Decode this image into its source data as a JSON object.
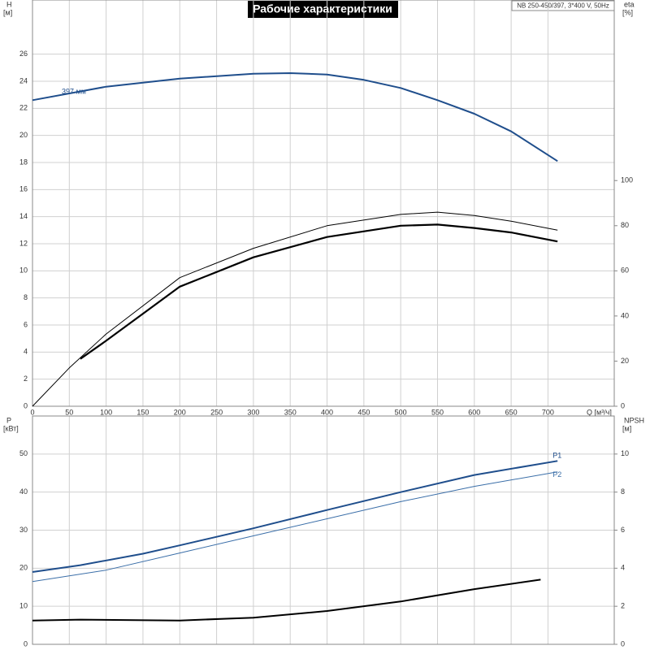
{
  "chart_data": [
    {
      "type": "line",
      "title": "Рабочие характеристики",
      "subtitle": "NB 250-450/397, 3*400 V, 50Hz",
      "ylabel": "H",
      "yunit": "[м]",
      "y2label": "eta",
      "y2unit": "[%]",
      "xlabel": "Q [м³/ч]",
      "xlim": [
        0,
        790
      ],
      "xticks": [
        0,
        50,
        100,
        150,
        200,
        250,
        300,
        350,
        400,
        450,
        500,
        550,
        600,
        650,
        700
      ],
      "ylim": [
        0,
        30
      ],
      "yticks": [
        0,
        2,
        4,
        6,
        8,
        10,
        12,
        14,
        16,
        18,
        20,
        22,
        24,
        26
      ],
      "y2lim": [
        0,
        180
      ],
      "y2ticks": [
        0,
        20,
        40,
        60,
        80,
        100
      ],
      "grid": true,
      "series": [
        {
          "name": "397 мм",
          "color": "#1f4e8c",
          "line_width": 2,
          "x": [
            0,
            100,
            200,
            300,
            350,
            400,
            450,
            500,
            550,
            600,
            650,
            713
          ],
          "values": [
            22.6,
            23.6,
            24.2,
            24.55,
            24.6,
            24.5,
            24.1,
            23.5,
            22.6,
            21.6,
            20.3,
            18.1
          ]
        },
        {
          "color": "#000000",
          "line_width": 1,
          "axis": "y2",
          "x": [
            0,
            50,
            100,
            200,
            300,
            400,
            500,
            550,
            600,
            650,
            713
          ],
          "values": [
            0,
            17,
            32,
            57,
            70,
            80,
            85,
            86,
            84.5,
            82,
            78
          ]
        },
        {
          "color": "#000000",
          "line_width": 2.2,
          "axis": "y2",
          "x": [
            65,
            100,
            200,
            300,
            400,
            500,
            550,
            600,
            650,
            713
          ],
          "values": [
            21,
            29,
            53,
            66,
            75,
            80,
            80.5,
            79,
            77,
            73
          ]
        }
      ]
    },
    {
      "type": "line",
      "ylabel": "P",
      "yunit": "[кВт]",
      "y2label": "NPSH",
      "y2unit": "[м]",
      "xlim": [
        0,
        790
      ],
      "xticks": [
        0,
        50,
        100,
        150,
        200,
        250,
        300,
        350,
        400,
        450,
        500,
        550,
        600,
        650,
        700
      ],
      "ylim": [
        0,
        60
      ],
      "yticks": [
        0,
        10,
        20,
        30,
        40,
        50
      ],
      "y2lim": [
        0,
        12
      ],
      "y2ticks": [
        0,
        2,
        4,
        6,
        8,
        10
      ],
      "grid": true,
      "series": [
        {
          "name": "P1",
          "color": "#1f4e8c",
          "line_width": 2,
          "x": [
            0,
            65,
            150,
            200,
            300,
            400,
            500,
            600,
            713
          ],
          "values": [
            19,
            20.8,
            23.8,
            26,
            30.5,
            35.3,
            40,
            44.5,
            48.2
          ]
        },
        {
          "name": "P2",
          "color": "#3a6ea8",
          "line_width": 1,
          "x": [
            0,
            100,
            200,
            300,
            400,
            500,
            600,
            713
          ],
          "values": [
            16.5,
            19.5,
            24,
            28.5,
            33,
            37.5,
            41.5,
            45.3
          ]
        },
        {
          "color": "#000000",
          "line_width": 2,
          "axis": "y2",
          "x": [
            0,
            65,
            200,
            300,
            400,
            500,
            600,
            690
          ],
          "values": [
            1.25,
            1.3,
            1.25,
            1.4,
            1.75,
            2.25,
            2.9,
            3.4
          ]
        }
      ]
    }
  ]
}
